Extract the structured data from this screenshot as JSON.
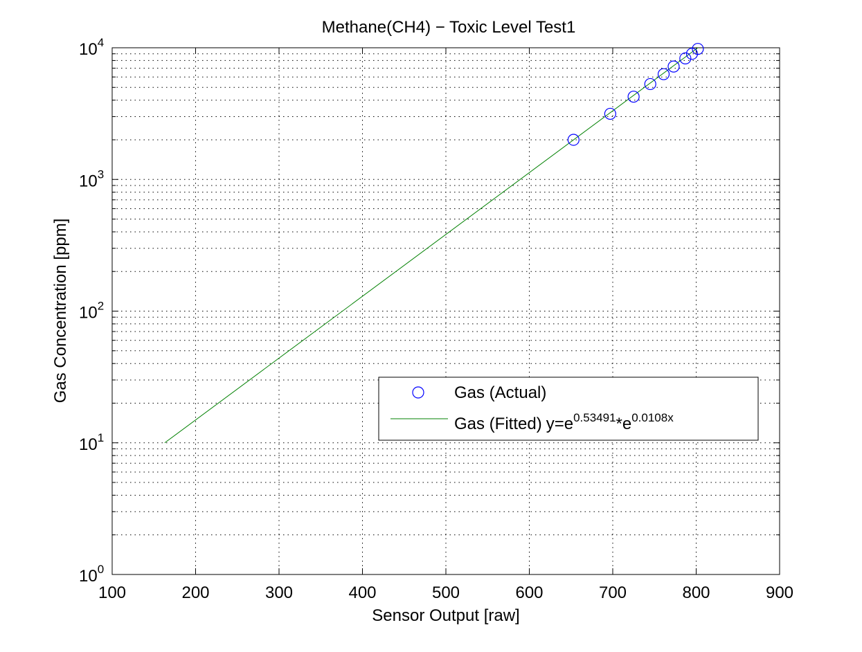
{
  "chart_data": {
    "type": "scatter",
    "title": "Methane(CH4) − Toxic Level Test1",
    "xlabel": "Sensor Output [raw]",
    "ylabel": "Gas Concentration [ppm]",
    "xlim": [
      100,
      900
    ],
    "ylim": [
      1,
      10000
    ],
    "yscale": "log",
    "grid": "on (major and minor, dotted)",
    "legend_position": "right-middle",
    "x_ticks": [
      "100",
      "200",
      "300",
      "400",
      "500",
      "600",
      "700",
      "800",
      "900"
    ],
    "y_ticks": [
      {
        "base": "10",
        "exp": "0",
        "value": 1
      },
      {
        "base": "10",
        "exp": "1",
        "value": 10
      },
      {
        "base": "10",
        "exp": "2",
        "value": 100
      },
      {
        "base": "10",
        "exp": "3",
        "value": 1000
      },
      {
        "base": "10",
        "exp": "4",
        "value": 10000
      }
    ],
    "series": [
      {
        "name": "Gas (Actual)",
        "kind": "marker-circle",
        "color": "#0000ff",
        "points": [
          {
            "x": 653,
            "y": 2000
          },
          {
            "x": 697,
            "y": 3150
          },
          {
            "x": 725,
            "y": 4250
          },
          {
            "x": 745,
            "y": 5300
          },
          {
            "x": 761,
            "y": 6300
          },
          {
            "x": 773,
            "y": 7200
          },
          {
            "x": 787,
            "y": 8300
          },
          {
            "x": 795,
            "y": 9000
          },
          {
            "x": 802,
            "y": 9800
          }
        ]
      },
      {
        "name": "Gas (Fitted)",
        "name_suffix": "y=e",
        "exp1": "0.53491",
        "mid": "*e",
        "exp2": "0.0108x",
        "kind": "line",
        "color": "#008000",
        "points": [
          {
            "x": 163,
            "y": 10
          },
          {
            "x": 802,
            "y": 10000
          }
        ]
      }
    ]
  }
}
